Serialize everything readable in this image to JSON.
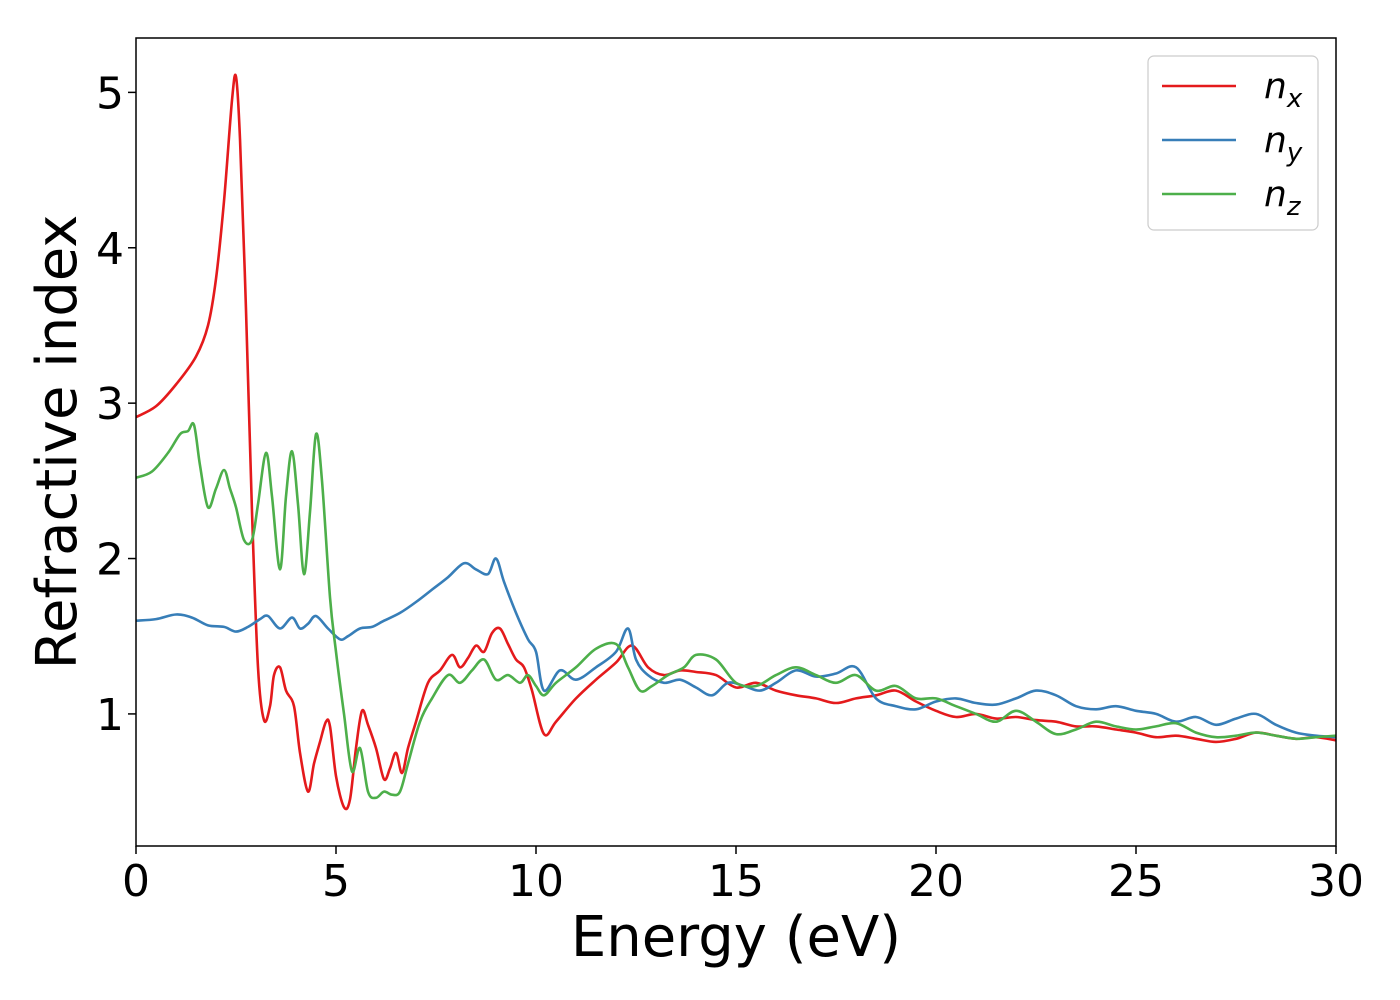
{
  "chart_data": {
    "type": "line",
    "title": "",
    "xlabel": "Energy (eV)",
    "ylabel": "Refractive index",
    "xlim": [
      0,
      30
    ],
    "ylim": [
      0.15,
      5.35
    ],
    "xticks": [
      0,
      5,
      10,
      15,
      20,
      25,
      30
    ],
    "xtick_labels": [
      "0",
      "5",
      "10",
      "15",
      "20",
      "25",
      "30"
    ],
    "yticks": [
      1,
      2,
      3,
      4,
      5
    ],
    "ytick_labels": [
      "1",
      "2",
      "3",
      "4",
      "5"
    ],
    "grid": false,
    "legend_position": "top-right",
    "series": [
      {
        "name": "n_x",
        "label_base": "n",
        "label_sub": "x",
        "color": "#e41a1c",
        "x": [
          0,
          0.5,
          1.0,
          1.5,
          1.8,
          2.0,
          2.2,
          2.4,
          2.5,
          2.6,
          2.75,
          2.9,
          3.05,
          3.2,
          3.35,
          3.45,
          3.6,
          3.75,
          3.95,
          4.1,
          4.3,
          4.45,
          4.6,
          4.75,
          4.85,
          5.0,
          5.2,
          5.35,
          5.5,
          5.65,
          5.8,
          6.0,
          6.2,
          6.35,
          6.5,
          6.65,
          6.8,
          7.0,
          7.3,
          7.6,
          7.9,
          8.1,
          8.3,
          8.5,
          8.7,
          8.9,
          9.1,
          9.3,
          9.5,
          9.7,
          9.9,
          10.2,
          10.5,
          11.0,
          11.5,
          12.0,
          12.4,
          12.8,
          13.2,
          13.6,
          14.0,
          14.5,
          15.0,
          15.5,
          16.0,
          16.5,
          17.0,
          17.5,
          18.0,
          18.5,
          19.0,
          19.5,
          20.0,
          20.5,
          21.0,
          21.5,
          22.0,
          22.5,
          23.0,
          23.5,
          24.0,
          24.5,
          25.0,
          25.5,
          26.0,
          26.5,
          27.0,
          27.5,
          28.0,
          28.5,
          29.0,
          29.5,
          30.0
        ],
        "y": [
          2.91,
          2.98,
          3.12,
          3.3,
          3.5,
          3.8,
          4.3,
          4.95,
          5.1,
          4.7,
          3.6,
          2.3,
          1.3,
          0.96,
          1.05,
          1.25,
          1.3,
          1.15,
          1.05,
          0.75,
          0.5,
          0.68,
          0.82,
          0.95,
          0.92,
          0.6,
          0.4,
          0.45,
          0.78,
          1.02,
          0.93,
          0.78,
          0.58,
          0.65,
          0.75,
          0.62,
          0.78,
          0.95,
          1.2,
          1.28,
          1.38,
          1.3,
          1.36,
          1.44,
          1.4,
          1.52,
          1.55,
          1.45,
          1.35,
          1.3,
          1.15,
          0.87,
          0.95,
          1.1,
          1.22,
          1.33,
          1.44,
          1.3,
          1.25,
          1.28,
          1.27,
          1.25,
          1.17,
          1.2,
          1.15,
          1.12,
          1.1,
          1.07,
          1.1,
          1.12,
          1.15,
          1.08,
          1.02,
          0.98,
          1.0,
          0.97,
          0.98,
          0.96,
          0.95,
          0.92,
          0.92,
          0.9,
          0.88,
          0.85,
          0.86,
          0.84,
          0.82,
          0.84,
          0.88,
          0.86,
          0.84,
          0.85,
          0.83
        ]
      },
      {
        "name": "n_y",
        "label_base": "n",
        "label_sub": "y",
        "color": "#377eb8",
        "x": [
          0,
          0.5,
          1.0,
          1.4,
          1.8,
          2.2,
          2.5,
          2.8,
          3.1,
          3.3,
          3.6,
          3.9,
          4.1,
          4.3,
          4.5,
          4.8,
          5.1,
          5.3,
          5.6,
          5.9,
          6.2,
          6.6,
          7.0,
          7.4,
          7.8,
          8.2,
          8.5,
          8.8,
          9.0,
          9.2,
          9.5,
          9.8,
          10.0,
          10.2,
          10.6,
          11.0,
          11.5,
          12.0,
          12.3,
          12.5,
          12.8,
          13.2,
          13.6,
          14.0,
          14.4,
          14.8,
          15.2,
          15.6,
          16.0,
          16.5,
          17.0,
          17.5,
          18.0,
          18.5,
          19.0,
          19.5,
          20.0,
          20.5,
          21.0,
          21.5,
          22.0,
          22.5,
          23.0,
          23.5,
          24.0,
          24.5,
          25.0,
          25.5,
          26.0,
          26.5,
          27.0,
          27.5,
          28.0,
          28.5,
          29.0,
          29.5,
          30.0
        ],
        "y": [
          1.6,
          1.61,
          1.64,
          1.62,
          1.57,
          1.56,
          1.53,
          1.56,
          1.61,
          1.63,
          1.55,
          1.62,
          1.55,
          1.58,
          1.63,
          1.55,
          1.48,
          1.5,
          1.55,
          1.56,
          1.6,
          1.65,
          1.72,
          1.8,
          1.88,
          1.97,
          1.93,
          1.9,
          2.0,
          1.85,
          1.65,
          1.48,
          1.4,
          1.15,
          1.28,
          1.22,
          1.3,
          1.4,
          1.55,
          1.35,
          1.25,
          1.2,
          1.22,
          1.17,
          1.12,
          1.2,
          1.18,
          1.15,
          1.2,
          1.28,
          1.24,
          1.26,
          1.3,
          1.1,
          1.05,
          1.03,
          1.08,
          1.1,
          1.07,
          1.06,
          1.1,
          1.15,
          1.12,
          1.05,
          1.03,
          1.05,
          1.02,
          1.0,
          0.95,
          0.98,
          0.93,
          0.97,
          1.0,
          0.93,
          0.88,
          0.86,
          0.85
        ]
      },
      {
        "name": "n_z",
        "label_base": "n",
        "label_sub": "z",
        "color": "#4daf4a",
        "x": [
          0,
          0.4,
          0.8,
          1.1,
          1.3,
          1.45,
          1.6,
          1.8,
          2.0,
          2.2,
          2.35,
          2.5,
          2.7,
          2.9,
          3.05,
          3.25,
          3.4,
          3.6,
          3.75,
          3.9,
          4.05,
          4.2,
          4.35,
          4.5,
          4.65,
          4.85,
          5.0,
          5.2,
          5.4,
          5.6,
          5.8,
          6.0,
          6.2,
          6.4,
          6.6,
          6.8,
          7.1,
          7.4,
          7.8,
          8.1,
          8.4,
          8.7,
          9.0,
          9.3,
          9.6,
          9.8,
          10.0,
          10.2,
          10.5,
          11.0,
          11.5,
          12.0,
          12.3,
          12.6,
          12.9,
          13.3,
          13.7,
          14.0,
          14.5,
          15.0,
          15.5,
          16.0,
          16.5,
          17.0,
          17.5,
          18.0,
          18.5,
          19.0,
          19.5,
          20.0,
          20.5,
          21.0,
          21.5,
          22.0,
          22.5,
          23.0,
          23.5,
          24.0,
          24.5,
          25.0,
          25.5,
          26.0,
          26.5,
          27.0,
          27.5,
          28.0,
          28.5,
          29.0,
          29.5,
          30.0
        ],
        "y": [
          2.52,
          2.56,
          2.68,
          2.8,
          2.82,
          2.86,
          2.6,
          2.33,
          2.45,
          2.57,
          2.45,
          2.33,
          2.12,
          2.12,
          2.35,
          2.68,
          2.4,
          1.93,
          2.4,
          2.69,
          2.35,
          1.9,
          2.3,
          2.8,
          2.5,
          1.75,
          1.4,
          1.0,
          0.63,
          0.78,
          0.5,
          0.46,
          0.5,
          0.48,
          0.5,
          0.68,
          0.95,
          1.1,
          1.25,
          1.2,
          1.28,
          1.35,
          1.22,
          1.25,
          1.2,
          1.25,
          1.18,
          1.12,
          1.2,
          1.3,
          1.42,
          1.45,
          1.3,
          1.15,
          1.18,
          1.25,
          1.3,
          1.38,
          1.35,
          1.2,
          1.18,
          1.25,
          1.3,
          1.25,
          1.2,
          1.25,
          1.15,
          1.18,
          1.1,
          1.1,
          1.05,
          1.0,
          0.95,
          1.02,
          0.95,
          0.87,
          0.9,
          0.95,
          0.92,
          0.9,
          0.92,
          0.94,
          0.88,
          0.85,
          0.86,
          0.88,
          0.86,
          0.84,
          0.85,
          0.86
        ]
      }
    ]
  }
}
